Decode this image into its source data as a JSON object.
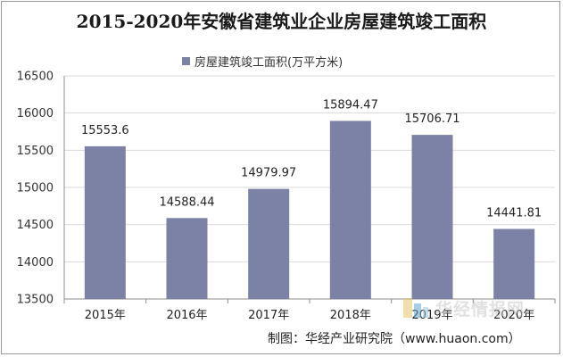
{
  "title": "2015-2020年安徽省建筑业企业房屋建筑竣工面积",
  "source": "制图：华经产业研究院（www.huaon.com）",
  "watermark": "华经情报网",
  "colors": {
    "bar": "#7c81a6",
    "grid": "#d9d9d9",
    "axis": "#8c8c8c"
  },
  "chart_data": {
    "type": "bar",
    "title": "2015-2020年安徽省建筑业企业房屋建筑竣工面积",
    "categories": [
      "2015年",
      "2016年",
      "2017年",
      "2018年",
      "2019年",
      "2020年"
    ],
    "series": [
      {
        "name": "房屋建筑竣工面积(万平方米)",
        "values": [
          15553.6,
          14588.44,
          14979.97,
          15894.47,
          15706.71,
          14441.81
        ],
        "labels": [
          "15553.6",
          "14588.44",
          "14979.97",
          "15894.47",
          "15706.71",
          "14441.81"
        ]
      }
    ],
    "ylim": [
      13500,
      16500
    ],
    "yticks": [
      13500,
      14000,
      14500,
      15000,
      15500,
      16000,
      16500
    ],
    "grid": true,
    "legend_position": "top"
  }
}
